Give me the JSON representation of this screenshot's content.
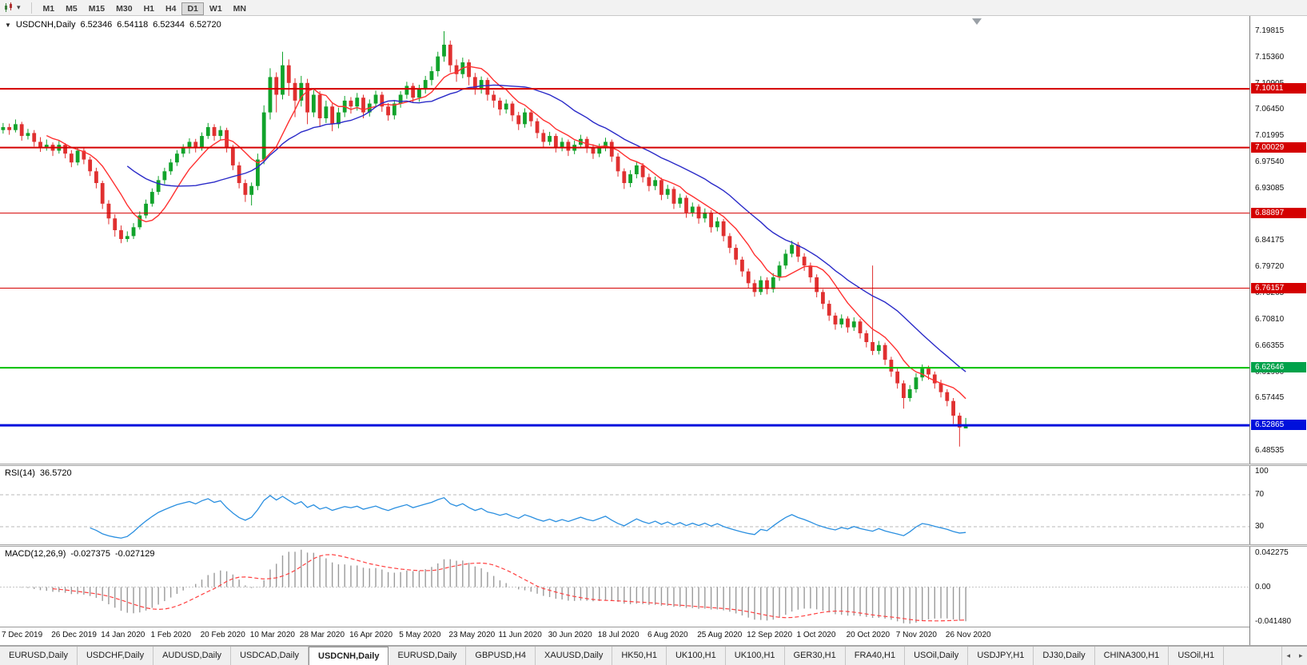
{
  "toolbar": {
    "timeframes": [
      "M1",
      "M5",
      "M15",
      "M30",
      "H1",
      "H4",
      "D1",
      "W1",
      "MN"
    ],
    "active_timeframe": "D1"
  },
  "chart": {
    "symbol_label": "USDCNH,Daily",
    "open": "6.52346",
    "high": "6.54118",
    "low": "6.52344",
    "close": "6.52720"
  },
  "chart_data": {
    "type": "candlestick",
    "symbol": "USDCNH",
    "timeframe": "Daily",
    "x_labels": [
      "7 Dec 2019",
      "26 Dec 2019",
      "14 Jan 2020",
      "1 Feb 2020",
      "20 Feb 2020",
      "10 Mar 2020",
      "28 Mar 2020",
      "16 Apr 2020",
      "5 May 2020",
      "23 May 2020",
      "11 Jun 2020",
      "30 Jun 2020",
      "18 Jul 2020",
      "6 Aug 2020",
      "25 Aug 2020",
      "12 Sep 2020",
      "1 Oct 2020",
      "20 Oct 2020",
      "7 Nov 2020",
      "26 Nov 2020"
    ],
    "x_label_step": 8,
    "price_axis": {
      "min": 6.4637,
      "max": 7.2237,
      "ticks": [
        "7.19815",
        "7.15360",
        "7.10905",
        "7.06450",
        "7.01995",
        "6.97540",
        "6.93085",
        "6.88630",
        "6.84175",
        "6.79720",
        "6.75265",
        "6.70810",
        "6.66355",
        "6.61900",
        "6.57445",
        "6.52990",
        "6.48535"
      ]
    },
    "hlines": [
      {
        "price": 7.10011,
        "label": "7.10011",
        "color": "#d40000",
        "badge": "#d40000",
        "width": 2
      },
      {
        "price": 7.00029,
        "label": "7.00029",
        "color": "#d40000",
        "badge": "#d40000",
        "width": 2
      },
      {
        "price": 6.88897,
        "label": "6.88897",
        "color": "#d40000",
        "badge": "#d40000",
        "width": 1
      },
      {
        "price": 6.76157,
        "label": "6.76157",
        "color": "#d40000",
        "badge": "#d40000",
        "width": 1
      },
      {
        "price": 6.62646,
        "label": "6.62646",
        "color": "#00c000",
        "badge": "#00a24a",
        "width": 2
      },
      {
        "price": 6.52865,
        "label": "6.52865",
        "color": "#0010dc",
        "badge": "#0010dc",
        "width": 3
      }
    ],
    "colors": {
      "up": "#11a32b",
      "down": "#e03030"
    },
    "moving_averages": [
      {
        "period": 8,
        "color": "#ff3030"
      },
      {
        "period": 21,
        "color": "#2a2ac8"
      }
    ],
    "rsi": {
      "name": "RSI(14)",
      "value": "36.5720",
      "period": 14,
      "levels": [
        70,
        30
      ],
      "axis_values": [
        100,
        70,
        30
      ],
      "color": "#2a8fe0"
    },
    "macd": {
      "name": "MACD(12,26,9)",
      "value1": "-0.027375",
      "value2": "-0.027129",
      "fast": 12,
      "slow": 26,
      "signal_period": 9,
      "axis_labels": [
        "0.042275",
        "0.00",
        "-0.041480"
      ],
      "histogram_color": "#9a9a9a",
      "signal_color": "#ff4040"
    },
    "candles": [
      [
        7.03,
        7.042,
        7.024,
        7.035
      ],
      [
        7.035,
        7.041,
        7.022,
        7.03
      ],
      [
        7.03,
        7.048,
        7.026,
        7.04
      ],
      [
        7.04,
        7.044,
        7.012,
        7.02
      ],
      [
        7.02,
        7.032,
        7.014,
        7.025
      ],
      [
        7.025,
        7.03,
        7.002,
        7.01
      ],
      [
        7.01,
        7.018,
        6.993,
        7.0
      ],
      [
        7.0,
        7.014,
        6.995,
        7.005
      ],
      [
        7.005,
        7.009,
        6.986,
        6.995
      ],
      [
        6.995,
        7.012,
        6.99,
        7.005
      ],
      [
        7.005,
        7.008,
        6.982,
        6.99
      ],
      [
        6.99,
        6.996,
        6.967,
        6.975
      ],
      [
        6.975,
        7.001,
        6.97,
        6.995
      ],
      [
        6.995,
        6.999,
        6.972,
        6.98
      ],
      [
        6.98,
        6.985,
        6.952,
        6.96
      ],
      [
        6.96,
        6.966,
        6.931,
        6.94
      ],
      [
        6.94,
        6.944,
        6.896,
        6.905
      ],
      [
        6.905,
        6.911,
        6.87,
        6.88
      ],
      [
        6.88,
        6.887,
        6.849,
        6.86
      ],
      [
        6.86,
        6.868,
        6.838,
        6.845
      ],
      [
        6.845,
        6.858,
        6.84,
        6.85
      ],
      [
        6.85,
        6.872,
        6.845,
        6.865
      ],
      [
        6.865,
        6.892,
        6.861,
        6.885
      ],
      [
        6.885,
        6.912,
        6.88,
        6.905
      ],
      [
        6.905,
        6.931,
        6.9,
        6.925
      ],
      [
        6.925,
        6.952,
        6.92,
        6.945
      ],
      [
        6.945,
        6.966,
        6.938,
        6.96
      ],
      [
        6.96,
        6.981,
        6.954,
        6.975
      ],
      [
        6.975,
        6.996,
        6.969,
        6.99
      ],
      [
        6.99,
        7.006,
        6.984,
        7.0
      ],
      [
        7.0,
        7.016,
        6.99,
        7.01
      ],
      [
        7.01,
        7.015,
        6.992,
        7.0
      ],
      [
        7.0,
        7.026,
        6.995,
        7.02
      ],
      [
        7.02,
        7.042,
        7.015,
        7.035
      ],
      [
        7.035,
        7.04,
        7.012,
        7.02
      ],
      [
        7.02,
        7.037,
        7.014,
        7.03
      ],
      [
        7.03,
        7.034,
        6.992,
        7.0
      ],
      [
        7.0,
        7.005,
        6.962,
        6.97
      ],
      [
        6.97,
        6.976,
        6.931,
        6.94
      ],
      [
        6.94,
        6.946,
        6.908,
        6.92
      ],
      [
        6.92,
        6.941,
        6.902,
        6.935
      ],
      [
        6.935,
        6.99,
        6.928,
        6.98
      ],
      [
        6.98,
        7.072,
        6.972,
        7.06
      ],
      [
        7.06,
        7.135,
        7.048,
        7.12
      ],
      [
        7.12,
        7.128,
        7.06,
        7.09
      ],
      [
        7.09,
        7.163,
        7.082,
        7.14
      ],
      [
        7.14,
        7.15,
        7.088,
        7.11
      ],
      [
        7.11,
        7.118,
        7.052,
        7.08
      ],
      [
        7.08,
        7.122,
        7.07,
        7.11
      ],
      [
        7.11,
        7.117,
        7.04,
        7.06
      ],
      [
        7.06,
        7.098,
        7.052,
        7.09
      ],
      [
        7.09,
        7.096,
        7.035,
        7.05
      ],
      [
        7.05,
        7.08,
        7.042,
        7.07
      ],
      [
        7.07,
        7.075,
        7.028,
        7.04
      ],
      [
        7.04,
        7.068,
        7.033,
        7.06
      ],
      [
        7.06,
        7.088,
        7.052,
        7.08
      ],
      [
        7.08,
        7.086,
        7.058,
        7.07
      ],
      [
        7.07,
        7.093,
        7.063,
        7.085
      ],
      [
        7.085,
        7.09,
        7.05,
        7.06
      ],
      [
        7.06,
        7.082,
        7.053,
        7.075
      ],
      [
        7.075,
        7.097,
        7.068,
        7.09
      ],
      [
        7.09,
        7.095,
        7.061,
        7.07
      ],
      [
        7.07,
        7.076,
        7.046,
        7.055
      ],
      [
        7.055,
        7.081,
        7.048,
        7.075
      ],
      [
        7.075,
        7.096,
        7.068,
        7.09
      ],
      [
        7.09,
        7.112,
        7.083,
        7.105
      ],
      [
        7.105,
        7.11,
        7.076,
        7.085
      ],
      [
        7.085,
        7.107,
        7.078,
        7.1
      ],
      [
        7.1,
        7.122,
        7.092,
        7.115
      ],
      [
        7.115,
        7.138,
        7.106,
        7.13
      ],
      [
        7.13,
        7.163,
        7.121,
        7.155
      ],
      [
        7.155,
        7.198,
        7.146,
        7.175
      ],
      [
        7.175,
        7.182,
        7.128,
        7.14
      ],
      [
        7.14,
        7.15,
        7.112,
        7.125
      ],
      [
        7.125,
        7.153,
        7.118,
        7.145
      ],
      [
        7.145,
        7.15,
        7.106,
        7.12
      ],
      [
        7.12,
        7.127,
        7.09,
        7.1
      ],
      [
        7.1,
        7.121,
        7.092,
        7.115
      ],
      [
        7.115,
        7.119,
        7.08,
        7.09
      ],
      [
        7.09,
        7.097,
        7.068,
        7.08
      ],
      [
        7.08,
        7.085,
        7.055,
        7.065
      ],
      [
        7.065,
        7.082,
        7.058,
        7.075
      ],
      [
        7.075,
        7.079,
        7.045,
        7.055
      ],
      [
        7.055,
        7.061,
        7.03,
        7.04
      ],
      [
        7.04,
        7.067,
        7.034,
        7.06
      ],
      [
        7.06,
        7.065,
        7.036,
        7.045
      ],
      [
        7.045,
        7.05,
        7.016,
        7.025
      ],
      [
        7.025,
        7.031,
        7.001,
        7.01
      ],
      [
        7.01,
        7.027,
        7.004,
        7.02
      ],
      [
        7.02,
        7.024,
        6.992,
        7.0
      ],
      [
        7.0,
        7.017,
        6.994,
        7.01
      ],
      [
        7.01,
        7.014,
        6.986,
        6.995
      ],
      [
        6.995,
        7.012,
        6.989,
        7.005
      ],
      [
        7.005,
        7.022,
        6.999,
        7.015
      ],
      [
        7.015,
        7.019,
        6.991,
        7.0
      ],
      [
        7.0,
        7.006,
        6.981,
        6.99
      ],
      [
        6.99,
        7.007,
        6.984,
        7.0
      ],
      [
        7.0,
        7.017,
        6.994,
        7.01
      ],
      [
        7.01,
        7.014,
        6.976,
        6.985
      ],
      [
        6.985,
        6.991,
        6.951,
        6.96
      ],
      [
        6.96,
        6.965,
        6.93,
        6.94
      ],
      [
        6.94,
        6.962,
        6.933,
        6.955
      ],
      [
        6.955,
        6.977,
        6.948,
        6.97
      ],
      [
        6.97,
        6.974,
        6.941,
        6.95
      ],
      [
        6.95,
        6.956,
        6.926,
        6.935
      ],
      [
        6.935,
        6.951,
        6.928,
        6.945
      ],
      [
        6.945,
        6.949,
        6.911,
        6.92
      ],
      [
        6.92,
        6.937,
        6.913,
        6.93
      ],
      [
        6.93,
        6.934,
        6.896,
        6.905
      ],
      [
        6.905,
        6.922,
        6.898,
        6.915
      ],
      [
        6.915,
        6.919,
        6.881,
        6.89
      ],
      [
        6.89,
        6.907,
        6.883,
        6.9
      ],
      [
        6.9,
        6.904,
        6.871,
        6.88
      ],
      [
        6.88,
        6.897,
        6.873,
        6.89
      ],
      [
        6.89,
        6.894,
        6.856,
        6.865
      ],
      [
        6.865,
        6.882,
        6.858,
        6.875
      ],
      [
        6.875,
        6.879,
        6.841,
        6.85
      ],
      [
        6.85,
        6.855,
        6.821,
        6.83
      ],
      [
        6.83,
        6.836,
        6.801,
        6.81
      ],
      [
        6.81,
        6.815,
        6.781,
        6.79
      ],
      [
        6.79,
        6.795,
        6.761,
        6.77
      ],
      [
        6.77,
        6.776,
        6.747,
        6.755
      ],
      [
        6.755,
        6.782,
        6.75,
        6.775
      ],
      [
        6.775,
        6.78,
        6.751,
        6.76
      ],
      [
        6.76,
        6.787,
        6.754,
        6.78
      ],
      [
        6.78,
        6.807,
        6.774,
        6.8
      ],
      [
        6.8,
        6.827,
        6.794,
        6.82
      ],
      [
        6.82,
        6.842,
        6.814,
        6.835
      ],
      [
        6.835,
        6.84,
        6.806,
        6.815
      ],
      [
        6.815,
        6.821,
        6.791,
        6.8
      ],
      [
        6.8,
        6.805,
        6.771,
        6.78
      ],
      [
        6.78,
        6.785,
        6.746,
        6.755
      ],
      [
        6.755,
        6.76,
        6.726,
        6.735
      ],
      [
        6.735,
        6.741,
        6.706,
        6.715
      ],
      [
        6.715,
        6.72,
        6.691,
        6.7
      ],
      [
        6.7,
        6.717,
        6.694,
        6.71
      ],
      [
        6.71,
        6.714,
        6.686,
        6.695
      ],
      [
        6.695,
        6.712,
        6.689,
        6.705
      ],
      [
        6.705,
        6.709,
        6.676,
        6.685
      ],
      [
        6.685,
        6.69,
        6.661,
        6.67
      ],
      [
        6.67,
        6.8,
        6.648,
        6.655
      ],
      [
        6.655,
        6.672,
        6.649,
        6.665
      ],
      [
        6.665,
        6.669,
        6.631,
        6.64
      ],
      [
        6.64,
        6.645,
        6.611,
        6.62
      ],
      [
        6.62,
        6.625,
        6.591,
        6.6
      ],
      [
        6.6,
        6.605,
        6.557,
        6.575
      ],
      [
        6.575,
        6.597,
        6.569,
        6.59
      ],
      [
        6.59,
        6.617,
        6.584,
        6.61
      ],
      [
        6.61,
        6.632,
        6.604,
        6.625
      ],
      [
        6.625,
        6.63,
        6.606,
        6.615
      ],
      [
        6.615,
        6.62,
        6.591,
        6.6
      ],
      [
        6.6,
        6.606,
        6.576,
        6.585
      ],
      [
        6.585,
        6.59,
        6.561,
        6.57
      ],
      [
        6.57,
        6.575,
        6.531,
        6.545
      ],
      [
        6.545,
        6.55,
        6.4926,
        6.525
      ],
      [
        6.5235,
        6.5412,
        6.5234,
        6.5272
      ]
    ]
  },
  "tabs": {
    "items": [
      "EURUSD,Daily",
      "USDCHF,Daily",
      "AUDUSD,Daily",
      "USDCAD,Daily",
      "USDCNH,Daily",
      "EURUSD,Daily",
      "GBPUSD,H4",
      "XAUUSD,Daily",
      "HK50,H1",
      "UK100,H1",
      "UK100,H1",
      "GER30,H1",
      "FRA40,H1",
      "USOil,Daily",
      "USDJPY,H1",
      "DJ30,Daily",
      "CHINA300,H1",
      "USOil,H1"
    ],
    "active_index": 4
  }
}
